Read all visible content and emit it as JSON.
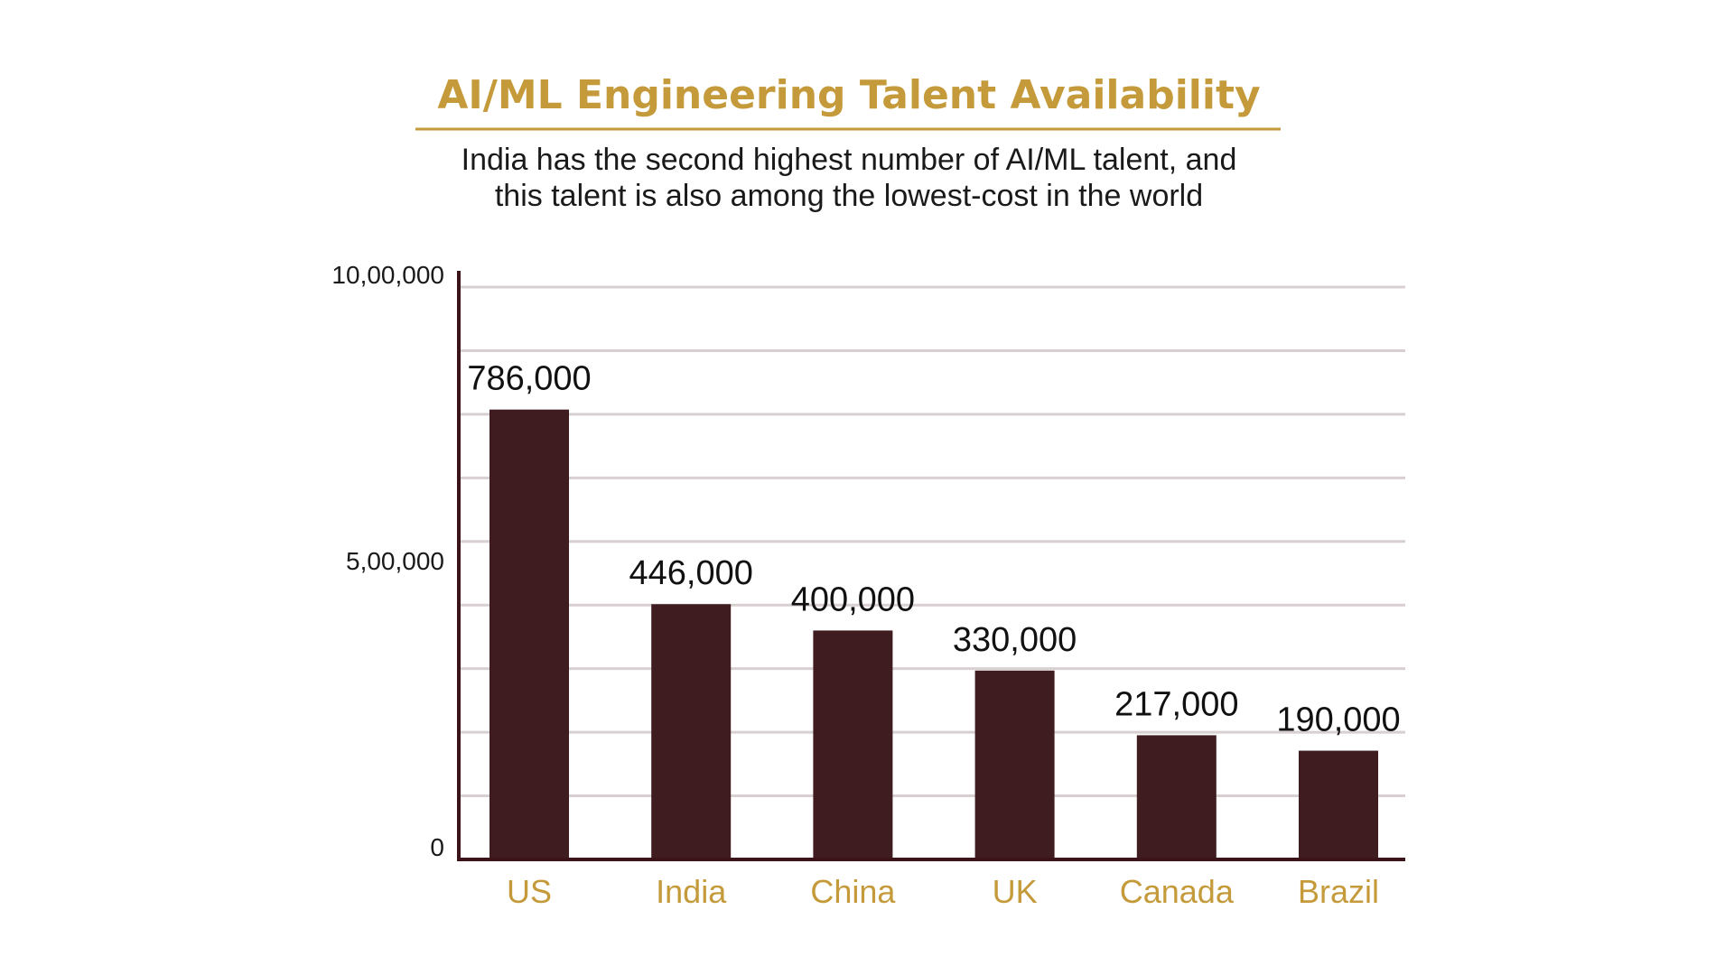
{
  "chart_data": {
    "type": "bar",
    "title": "AI/ML Engineering Talent Availability",
    "subtitle_lines": [
      "India has the second highest number of AI/ML talent, and",
      "this talent is also among the lowest-cost in the world"
    ],
    "categories": [
      "US",
      "India",
      "China",
      "UK",
      "Canada",
      "Brazil"
    ],
    "values": [
      786000,
      446000,
      400000,
      330000,
      217000,
      190000
    ],
    "value_labels": [
      "786,000",
      "446,000",
      "400,000",
      "330,000",
      "217,000",
      "190,000"
    ],
    "xlabel": "",
    "ylabel": "",
    "ylim": [
      0,
      1000000
    ],
    "y_ticks": [
      {
        "value": 0,
        "label": "0"
      },
      {
        "value": 500000,
        "label": "5,00,000"
      },
      {
        "value": 1000000,
        "label": "10,00,000"
      }
    ],
    "gridlines": true,
    "gridline_count": 9,
    "legend": "none"
  },
  "colors": {
    "accent": "#c49a3a",
    "bar": "#3f1c20",
    "axis": "#3a1418",
    "grid": "#d8cfd1",
    "text": "#1a1a1a"
  }
}
